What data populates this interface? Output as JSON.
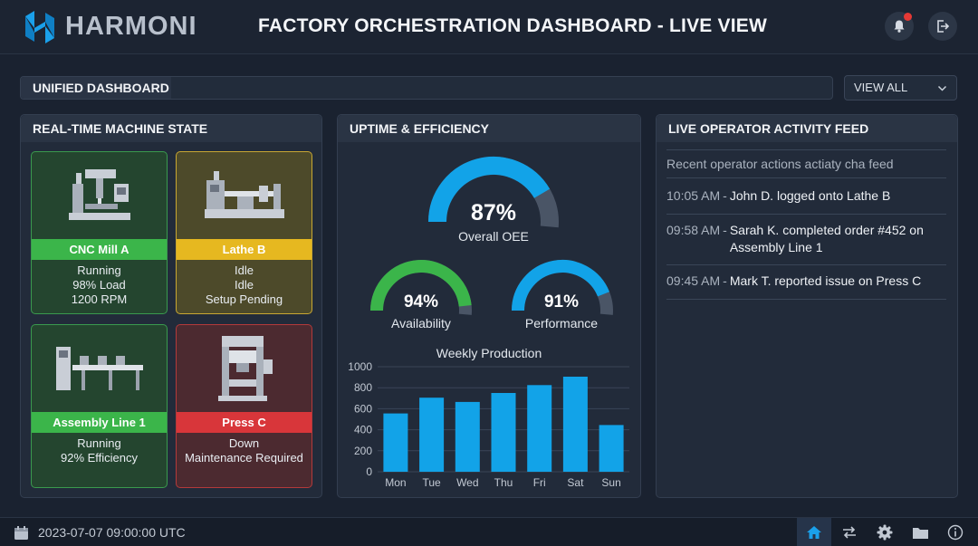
{
  "header": {
    "logo_text": "HARMONI",
    "title": "FACTORY ORCHESTRATION DASHBOARD - LIVE VIEW",
    "icons": [
      "bell-icon",
      "logout-icon"
    ]
  },
  "dashbar": {
    "label": "UNIFIED DASHBOARD",
    "view_all": "VIEW ALL"
  },
  "machines": {
    "title": "REAL-TIME MACHINE STATE",
    "items": [
      {
        "name": "CNC Mill A",
        "status": "green",
        "lines": [
          "Running",
          "98% Load",
          "1200 RPM"
        ]
      },
      {
        "name": "Lathe B",
        "status": "yellow",
        "lines": [
          "Idle",
          "Idle",
          "Setup Pending"
        ]
      },
      {
        "name": "Assembly Line 1",
        "status": "green",
        "lines": [
          "Running",
          "92% Efficiency"
        ]
      },
      {
        "name": "Press C",
        "status": "red",
        "lines": [
          "Down",
          "Maintenance Required"
        ]
      }
    ]
  },
  "uptime": {
    "title": "UPTIME & EFFICIENCY",
    "oee": {
      "value": "87%",
      "label": "Overall OEE",
      "fraction": 0.87
    },
    "availability": {
      "value": "94%",
      "label": "Availability",
      "fraction": 0.94
    },
    "performance": {
      "value": "91%",
      "label": "Performance",
      "fraction": 0.91
    }
  },
  "chart_data": {
    "type": "bar",
    "title": "Weekly Production",
    "categories": [
      "Mon",
      "Tue",
      "Wed",
      "Thu",
      "Fri",
      "Sat",
      "Sun"
    ],
    "values": [
      555,
      705,
      665,
      750,
      825,
      905,
      445
    ],
    "ylim": [
      0,
      1000
    ],
    "yticks": [
      0,
      200,
      400,
      600,
      800,
      1000
    ],
    "grid": true,
    "color": "#12a3e8"
  },
  "feed": {
    "title": "LIVE OPERATOR ACTIVITY FEED",
    "subtitle": "Recent operator actions actiaty cha feed",
    "items": [
      {
        "time": "10:05 AM",
        "msg": "John D. logged onto Lathe B"
      },
      {
        "time": "09:58 AM",
        "msg": "Sarah K. completed order #452 on Assembly Line 1"
      },
      {
        "time": "09:45 AM",
        "msg": "Mark T. reported issue on Press C"
      }
    ]
  },
  "footer": {
    "datetime": "2023-07-07 09:00:00 UTC",
    "icons": [
      "home-icon",
      "sync-icon",
      "gear-icon",
      "folder-icon",
      "info-icon"
    ]
  },
  "colors": {
    "accent": "#12a3e8",
    "green": "#3bb54a",
    "yellow": "#e6b820",
    "red": "#d8363a"
  }
}
